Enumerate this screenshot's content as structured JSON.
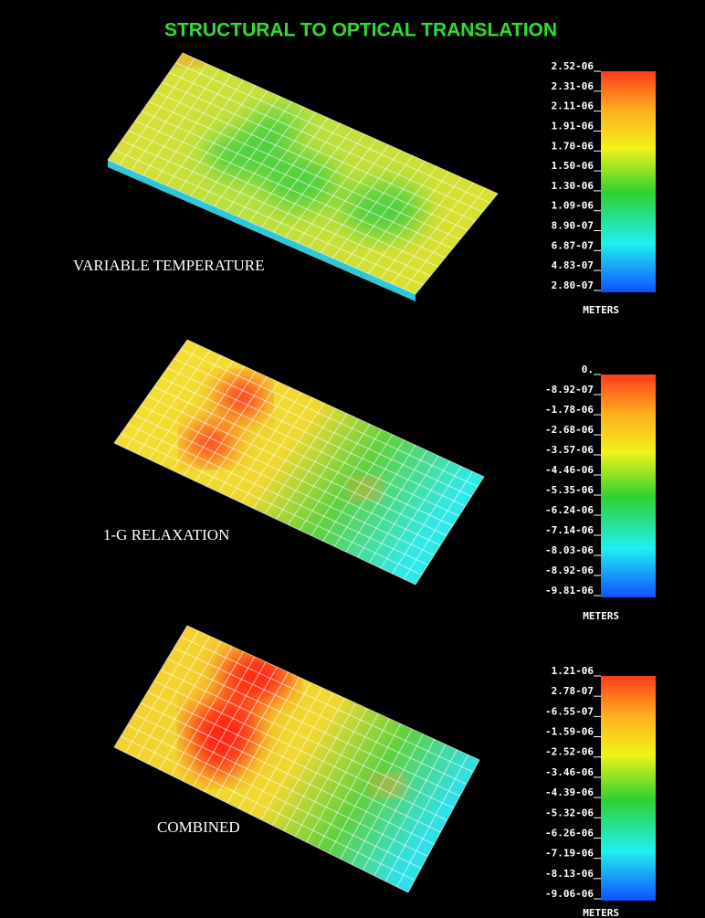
{
  "title": "STRUCTURAL TO OPTICAL TRANSLATION",
  "panels": [
    {
      "label": "VARIABLE TEMPERATURE",
      "scale": [
        "2.52-06",
        "2.31-06",
        "2.11-06",
        "1.91-06",
        "1.70-06",
        "1.50-06",
        "1.30-06",
        "1.09-06",
        "8.90-07",
        "6.87-07",
        "4.83-07",
        "2.80-07"
      ],
      "unit": "METERS"
    },
    {
      "label": "1-G RELAXATION",
      "scale": [
        "0.",
        "-8.92-07",
        "-1.78-06",
        "-2.68-06",
        "-3.57-06",
        "-4.46-06",
        "-5.35-06",
        "-6.24-06",
        "-7.14-06",
        "-8.03-06",
        "-8.92-06",
        "-9.81-06"
      ],
      "unit": "METERS"
    },
    {
      "label": "COMBINED",
      "scale": [
        "1.21-06",
        "2.78-07",
        "-6.55-07",
        "-1.59-06",
        "-2.52-06",
        "-3.46-06",
        "-4.39-06",
        "-5.32-06",
        "-6.26-06",
        "-7.19-06",
        "-8.13-06",
        "-9.06-06"
      ],
      "unit": "METERS"
    }
  ]
}
